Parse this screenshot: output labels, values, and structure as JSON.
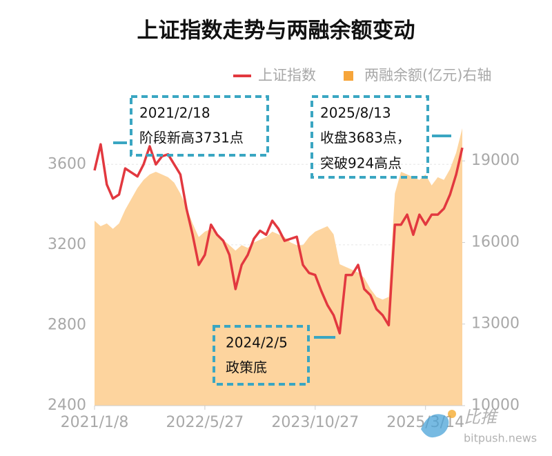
{
  "chart_data": {
    "type": "line",
    "title": "上证指数走势与两融余额变动",
    "categories": [
      "2021/1/8",
      null,
      null,
      null,
      null,
      null,
      null,
      null,
      null,
      null,
      null,
      null,
      null,
      null,
      null,
      null,
      null,
      null,
      "2022/5/27",
      null,
      null,
      null,
      null,
      null,
      null,
      null,
      null,
      null,
      null,
      null,
      null,
      null,
      null,
      null,
      null,
      null,
      "2023/10/27",
      null,
      null,
      null,
      null,
      null,
      null,
      null,
      null,
      null,
      null,
      null,
      null,
      null,
      null,
      null,
      null,
      null,
      "2025/3/14",
      null,
      null,
      null,
      null,
      null,
      null
    ],
    "series": [
      {
        "name": "两融余额(亿元)右轴",
        "type": "area",
        "axis": "y2",
        "color": "#fdd49e",
        "legend_color": "#f6a53a",
        "values": [
          16800,
          16600,
          16700,
          16500,
          16700,
          17200,
          17600,
          18000,
          18300,
          18500,
          18600,
          18500,
          18400,
          18200,
          17800,
          17300,
          16700,
          16200,
          16400,
          16500,
          16300,
          16100,
          15900,
          15700,
          15900,
          15800,
          16000,
          16100,
          16200,
          16400,
          16300,
          16200,
          16000,
          15900,
          15900,
          16200,
          16400,
          16500,
          16600,
          16300,
          15200,
          15100,
          15000,
          14900,
          14700,
          14300,
          14000,
          13900,
          14000,
          17800,
          18600,
          18500,
          18400,
          18300,
          18500,
          18100,
          18400,
          18300,
          18700,
          19300,
          20200
        ]
      },
      {
        "name": "上证指数",
        "type": "line",
        "axis": "y",
        "color": "#e2383f",
        "values": [
          3570,
          3700,
          3500,
          3430,
          3450,
          3580,
          3560,
          3540,
          3600,
          3690,
          3600,
          3640,
          3650,
          3600,
          3550,
          3380,
          3250,
          3100,
          3150,
          3300,
          3250,
          3220,
          3150,
          2980,
          3100,
          3150,
          3230,
          3270,
          3250,
          3320,
          3280,
          3220,
          3230,
          3240,
          3100,
          3060,
          3050,
          2970,
          2900,
          2850,
          2760,
          3050,
          3050,
          3100,
          2980,
          2950,
          2880,
          2850,
          2800,
          3300,
          3300,
          3350,
          3250,
          3350,
          3300,
          3350,
          3350,
          3380,
          3450,
          3550,
          3683
        ]
      }
    ],
    "ylim": [
      2400,
      3800
    ],
    "yticks": [
      2400,
      2800,
      3200,
      3600
    ],
    "y2lim": [
      10000,
      20350
    ],
    "y2ticks": [
      10000,
      13000,
      16000,
      19000
    ],
    "grid": true,
    "legend": "top-right",
    "annotations": [
      {
        "lines": [
          "2021/2/18",
          "阶段新高3731点"
        ]
      },
      {
        "lines": [
          "2025/8/13",
          "收盘3683点，",
          "突破924高点"
        ]
      },
      {
        "lines": [
          "2024/2/5",
          "政策底"
        ]
      }
    ],
    "watermark": {
      "brand": "比推",
      "site": "bitpush.news"
    }
  }
}
